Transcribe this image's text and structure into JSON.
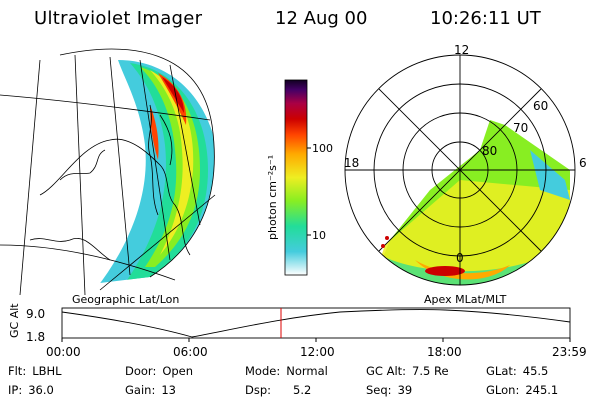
{
  "header": {
    "title": "Ultraviolet Imager",
    "date": "12 Aug 00",
    "time": "10:26:11 UT"
  },
  "panels": {
    "left_label": "Geographic Lat/Lon",
    "right_label": "Apex MLat/MLT"
  },
  "colorbar": {
    "unit_label": "photon cm⁻²s⁻¹",
    "ticks": [
      "100",
      "10"
    ],
    "colors": [
      "#ffffff",
      "#44ccdd",
      "#22dd99",
      "#88ee22",
      "#eeee22",
      "#ffaa00",
      "#ff4400",
      "#cc0000",
      "#aa0044",
      "#440066",
      "#110022"
    ]
  },
  "polar": {
    "mlt_labels": [
      "12",
      "18",
      "6",
      "0"
    ],
    "lat_labels": [
      "60",
      "70",
      "80"
    ]
  },
  "timeline": {
    "ylabel": "GC Alt",
    "yticks": [
      "9.0",
      "1.8"
    ],
    "xticks": [
      "00:00",
      "06:00",
      "12:00",
      "18:00",
      "23:59"
    ]
  },
  "info": {
    "flt_label": "Flt:",
    "flt_value": "LBHL",
    "ip_label": "IP:",
    "ip_value": "36.0",
    "door_label": "Door:",
    "door_value": "Open",
    "gain_label": "Gain:",
    "gain_value": "13",
    "mode_label": "Mode:",
    "mode_value": "Normal",
    "dsp_label": "Dsp:",
    "dsp_value": "5.2",
    "gcalt_label": "GC Alt:",
    "gcalt_value": "7.5 Re",
    "seq_label": "Seq:",
    "seq_value": "39",
    "glat_label": "GLat:",
    "glat_value": "45.5",
    "glon_label": "GLon:",
    "glon_value": "245.1"
  }
}
